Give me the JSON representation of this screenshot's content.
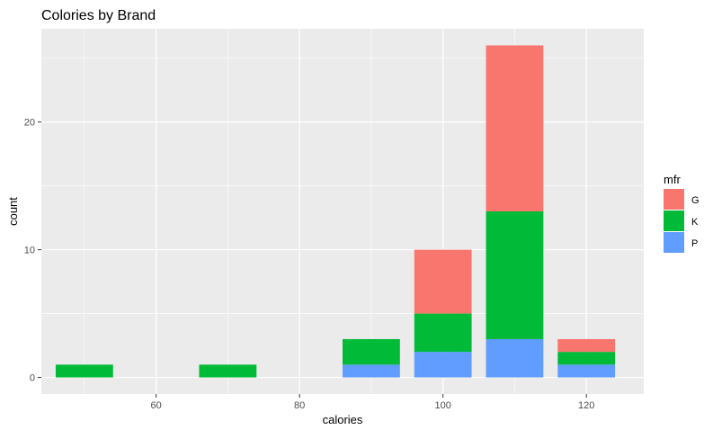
{
  "chart_data": {
    "type": "bar",
    "stacked": true,
    "title": "Colories by Brand",
    "xlabel": "calories",
    "ylabel": "count",
    "categories": [
      50,
      70,
      90,
      100,
      110,
      120
    ],
    "series": [
      {
        "name": "G",
        "color": "#F8766D",
        "values": [
          0,
          0,
          0,
          5,
          13,
          1
        ]
      },
      {
        "name": "K",
        "color": "#00BA38",
        "values": [
          1,
          1,
          2,
          3,
          10,
          1
        ]
      },
      {
        "name": "P",
        "color": "#619CFF",
        "values": [
          0,
          0,
          1,
          2,
          3,
          1
        ]
      }
    ],
    "stack_order_bottom_to_top": [
      "P",
      "K",
      "G"
    ],
    "bar_width": 8,
    "xlim": [
      44,
      128
    ],
    "ylim": [
      -1.3,
      27.3
    ],
    "xticks": [
      60,
      80,
      100,
      120
    ],
    "yticks": [
      0,
      10,
      20
    ],
    "legend": {
      "title": "mfr",
      "position": "right",
      "items": [
        "G",
        "K",
        "P"
      ]
    },
    "grid": true,
    "panel_background": "#EBEBEB",
    "grid_color": "#FFFFFF"
  }
}
